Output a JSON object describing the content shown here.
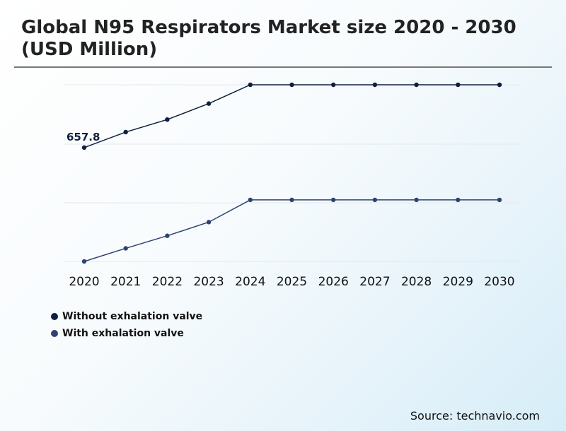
{
  "header": {
    "title": "Global N95 Respirators Market size 2020 - 2030 (USD Million)"
  },
  "source": "Source: technavio.com",
  "colors": {
    "without_valve": "#0f1f3d",
    "with_valve": "#2e4470"
  },
  "chart_data": {
    "type": "line",
    "title": "Global N95 Respirators Market size 2020 - 2030 (USD Million)",
    "x": [
      "2020",
      "2021",
      "2022",
      "2023",
      "2024",
      "2025",
      "2026",
      "2027",
      "2028",
      "2029",
      "2030"
    ],
    "grid": true,
    "legend": "bottom-left",
    "annotations": [
      {
        "series": "Without exhalation valve",
        "x": "2020",
        "text": "657.8"
      }
    ],
    "series": [
      {
        "name": "Without exhalation valve",
        "values": [
          657.8,
          685,
          707,
          735,
          768,
          768,
          768,
          768,
          768,
          768,
          768
        ]
      },
      {
        "name": "With exhalation valve",
        "values": [
          458,
          481,
          503,
          527,
          566,
          566,
          566,
          566,
          566,
          566,
          566
        ]
      }
    ]
  }
}
